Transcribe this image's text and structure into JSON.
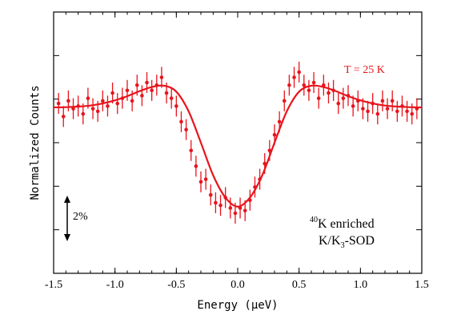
{
  "chart_data": {
    "type": "scatter",
    "xlabel": "Energy (μeV)",
    "ylabel": "Normalized Counts",
    "xlim": [
      -1.5,
      1.5
    ],
    "ylim": [
      0,
      1
    ],
    "x_ticks": [
      "-1.5",
      "-1.0",
      "-0.5",
      "0.0",
      "0.5",
      "1.0",
      "1.5"
    ],
    "y_tick_labels": [],
    "grid": false,
    "legend": "none",
    "color": "#e8141c",
    "annotations": {
      "temperature": "T = 25 K",
      "scale_bar": "2%",
      "sample_sup": "40",
      "sample_line1": "K enriched",
      "sample_line2_a": "K/K",
      "sample_line2_sub": "3",
      "sample_line2_b": "-SOD"
    },
    "fit": {
      "name": "fit",
      "x": [
        -1.5,
        -1.4,
        -1.3,
        -1.2,
        -1.1,
        -1.0,
        -0.9,
        -0.8,
        -0.7,
        -0.6,
        -0.5,
        -0.4,
        -0.3,
        -0.2,
        -0.1,
        0.0,
        0.1,
        0.2,
        0.3,
        0.4,
        0.5,
        0.6,
        0.7,
        0.8,
        0.9,
        1.0,
        1.1,
        1.2,
        1.3,
        1.4,
        1.5
      ],
      "y": [
        0.635,
        0.636,
        0.638,
        0.642,
        0.65,
        0.662,
        0.678,
        0.697,
        0.713,
        0.718,
        0.695,
        0.62,
        0.5,
        0.375,
        0.29,
        0.255,
        0.29,
        0.375,
        0.5,
        0.62,
        0.695,
        0.718,
        0.713,
        0.697,
        0.678,
        0.662,
        0.65,
        0.642,
        0.638,
        0.636,
        0.635
      ]
    },
    "series": [
      {
        "x": [
          -1.46,
          -1.42,
          -1.38,
          -1.34,
          -1.3,
          -1.26,
          -1.22,
          -1.18,
          -1.14,
          -1.1,
          -1.06,
          -1.02,
          -0.98,
          -0.94,
          -0.9,
          -0.86,
          -0.82,
          -0.78,
          -0.74,
          -0.7,
          -0.66,
          -0.62,
          -0.58,
          -0.54,
          -0.5,
          -0.46,
          -0.42,
          -0.38,
          -0.34,
          -0.3,
          -0.26,
          -0.22,
          -0.18,
          -0.14,
          -0.1,
          -0.06,
          -0.02,
          0.02,
          0.06,
          0.1,
          0.14,
          0.18,
          0.22,
          0.26,
          0.3,
          0.34,
          0.38,
          0.42,
          0.46,
          0.5,
          0.54,
          0.58,
          0.62,
          0.66,
          0.7,
          0.74,
          0.78,
          0.82,
          0.86,
          0.9,
          0.94,
          0.98,
          1.02,
          1.06,
          1.1,
          1.14,
          1.18,
          1.22,
          1.26,
          1.3,
          1.34,
          1.38,
          1.42,
          1.46
        ],
        "y": [
          0.65,
          0.6,
          0.66,
          0.63,
          0.64,
          0.61,
          0.67,
          0.63,
          0.62,
          0.66,
          0.64,
          0.69,
          0.65,
          0.67,
          0.7,
          0.66,
          0.72,
          0.68,
          0.73,
          0.7,
          0.72,
          0.75,
          0.69,
          0.67,
          0.64,
          0.58,
          0.55,
          0.47,
          0.41,
          0.35,
          0.36,
          0.3,
          0.27,
          0.26,
          0.29,
          0.25,
          0.23,
          0.25,
          0.24,
          0.28,
          0.33,
          0.36,
          0.42,
          0.47,
          0.53,
          0.58,
          0.66,
          0.72,
          0.75,
          0.77,
          0.72,
          0.7,
          0.73,
          0.67,
          0.72,
          0.69,
          0.7,
          0.65,
          0.67,
          0.68,
          0.64,
          0.66,
          0.63,
          0.62,
          0.65,
          0.61,
          0.66,
          0.63,
          0.66,
          0.62,
          0.64,
          0.62,
          0.61,
          0.63
        ],
        "err": 0.04
      }
    ]
  }
}
